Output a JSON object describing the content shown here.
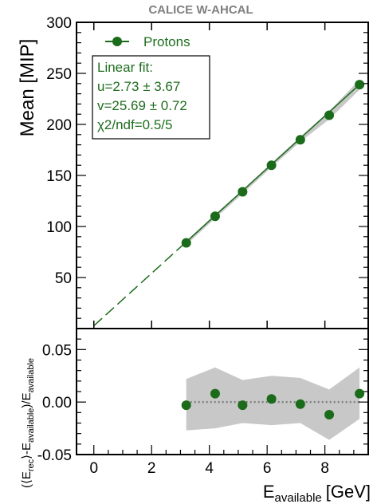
{
  "title": "CALICE W-AHCAL",
  "chart_data": [
    {
      "type": "scatter",
      "panel": "top",
      "ylabel": "Mean [MIP]",
      "xlim": [
        -0.6,
        9.5
      ],
      "ylim": [
        0,
        300
      ],
      "xticks": [
        0,
        2,
        4,
        6,
        8
      ],
      "yticks": [
        50,
        100,
        150,
        200,
        250,
        300
      ],
      "series": [
        {
          "name": "Protons",
          "color": "#1a6b1a",
          "x": [
            3.2,
            4.2,
            5.15,
            6.15,
            7.15,
            8.15,
            9.2
          ],
          "y": [
            84,
            110,
            134,
            160,
            185,
            209,
            239
          ],
          "band_low": [
            82,
            108,
            132,
            158,
            183,
            205,
            234
          ],
          "band_high": [
            86,
            112,
            136,
            162,
            188,
            213,
            244
          ]
        }
      ],
      "fit": {
        "title": "Linear fit:",
        "u_line": "u=2.73 ± 3.67",
        "v_line": "v=25.69 ± 0.72",
        "chi_line": "χ2/ndf=0.5/5",
        "u": 2.73,
        "v": 25.69
      },
      "legend": "top-left",
      "grid": false
    },
    {
      "type": "scatter",
      "panel": "bottom",
      "xlabel_main": "E",
      "xlabel_sub": "available",
      "xlabel_unit": "[GeV]",
      "ylabel_parts": [
        "(⟨E",
        "rec",
        "⟩-E",
        "available",
        ")/E",
        "available"
      ],
      "xlim": [
        -0.6,
        9.5
      ],
      "ylim": [
        -0.05,
        0.07
      ],
      "xticks": [
        0,
        2,
        4,
        6,
        8
      ],
      "yticks": [
        -0.05,
        0.0,
        0.05
      ],
      "ytick_labels": [
        "-0.05",
        "0.00",
        "0.05"
      ],
      "reference_line": 0.0,
      "series": [
        {
          "name": "Protons",
          "x": [
            3.2,
            4.2,
            5.15,
            6.15,
            7.15,
            8.15,
            9.2
          ],
          "y": [
            -0.003,
            0.008,
            -0.003,
            0.003,
            -0.002,
            -0.012,
            0.008
          ],
          "band_low": [
            -0.027,
            -0.025,
            -0.02,
            -0.022,
            -0.02,
            -0.036,
            -0.016
          ],
          "band_high": [
            0.022,
            0.033,
            0.021,
            0.025,
            0.023,
            0.012,
            0.033
          ]
        }
      ],
      "grid": false
    }
  ]
}
